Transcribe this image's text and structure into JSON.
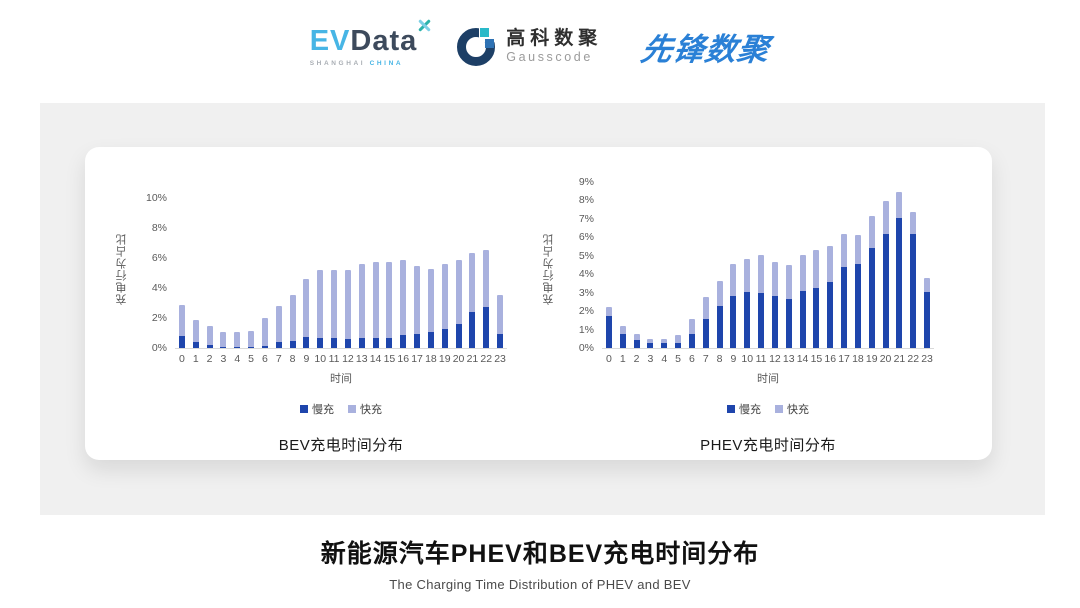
{
  "header": {
    "evdata": {
      "ev": "EV",
      "data": "Data",
      "sub_left": "SHANGHAI",
      "sub_right": "CHINA"
    },
    "gausscode": {
      "cn": "高科数聚",
      "en": "Gausscode"
    },
    "pioneer": "先锋数聚"
  },
  "colors": {
    "slow": "#1e45ac",
    "fast": "#a9b1de",
    "panel_bg": "#f0f0f0",
    "axis_text": "#595959",
    "baseline": "#d9d9d9",
    "evdata_blue": "#47b5e5",
    "evdata_dark": "#3d4a5c",
    "pioneer_blue": "#2a80d6"
  },
  "chart_data": [
    {
      "type": "bar",
      "stacked": true,
      "title": "BEV充电时间分布",
      "xlabel": "时间",
      "ylabel": "充电行为占比",
      "ylim": [
        0,
        10
      ],
      "ytick_step": 2,
      "ytick_suffix": "%",
      "grid": false,
      "legend_position": "bottom",
      "categories": [
        0,
        1,
        2,
        3,
        4,
        5,
        6,
        7,
        8,
        9,
        10,
        11,
        12,
        13,
        14,
        15,
        16,
        17,
        18,
        19,
        20,
        21,
        22,
        23
      ],
      "series": [
        {
          "name": "慢充",
          "color": "#1e45ac",
          "values": [
            0.8,
            0.4,
            0.2,
            0.1,
            0.1,
            0.1,
            0.15,
            0.4,
            0.5,
            0.75,
            0.7,
            0.7,
            0.6,
            0.65,
            0.7,
            0.7,
            0.85,
            0.95,
            1.1,
            1.3,
            1.6,
            2.4,
            2.75,
            0.95
          ]
        },
        {
          "name": "快充",
          "color": "#a9b1de",
          "values": [
            2.1,
            1.5,
            1.3,
            1.0,
            0.95,
            1.05,
            1.85,
            2.4,
            3.05,
            3.85,
            4.5,
            4.5,
            4.6,
            4.95,
            5.05,
            5.05,
            5.0,
            4.5,
            4.2,
            4.3,
            4.3,
            3.95,
            3.8,
            2.6
          ]
        }
      ]
    },
    {
      "type": "bar",
      "stacked": true,
      "title": "PHEV充电时间分布",
      "xlabel": "时间",
      "ylabel": "充电行为占比",
      "ylim": [
        0,
        9
      ],
      "ytick_step": 1,
      "ytick_suffix": "%",
      "grid": false,
      "legend_position": "bottom",
      "categories": [
        0,
        1,
        2,
        3,
        4,
        5,
        6,
        7,
        8,
        9,
        10,
        11,
        12,
        13,
        14,
        15,
        16,
        17,
        18,
        19,
        20,
        21,
        22,
        23
      ],
      "series": [
        {
          "name": "慢充",
          "color": "#1e45ac",
          "values": [
            1.75,
            0.75,
            0.45,
            0.25,
            0.25,
            0.3,
            0.75,
            1.6,
            2.3,
            2.8,
            3.05,
            3.0,
            2.8,
            2.65,
            3.1,
            3.25,
            3.6,
            4.4,
            4.55,
            5.4,
            6.2,
            7.05,
            6.2,
            3.05
          ]
        },
        {
          "name": "快充",
          "color": "#a9b1de",
          "values": [
            0.5,
            0.45,
            0.3,
            0.25,
            0.25,
            0.4,
            0.85,
            1.15,
            1.35,
            1.75,
            1.75,
            2.05,
            1.85,
            1.85,
            1.95,
            2.05,
            1.95,
            1.8,
            1.6,
            1.75,
            1.75,
            1.4,
            1.2,
            0.75
          ]
        }
      ]
    }
  ],
  "footer": {
    "title": "新能源汽车PHEV和BEV充电时间分布",
    "subtitle": "The Charging Time Distribution of PHEV and BEV"
  }
}
